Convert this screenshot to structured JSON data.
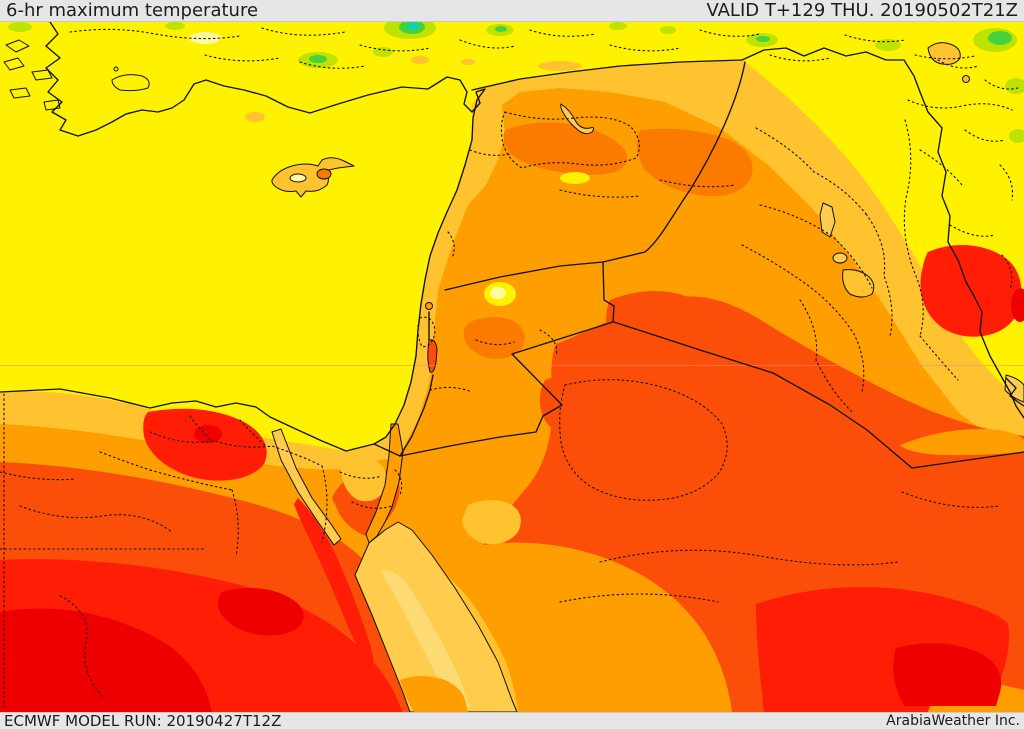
{
  "header": {
    "title": "6-hr maximum temperature",
    "valid_label": "VALID T+129 THU. 20190502T21Z"
  },
  "footer": {
    "model_run": "ECMWF MODEL RUN: 20190427T12Z",
    "credit": "ArabiaWeather Inc."
  },
  "ui": {
    "bar_bg": "#E6E6E6",
    "bar_text": "#1C1C1C",
    "line_color": "#111111"
  },
  "map": {
    "description": "ECMWF 6-hour maximum temperature filled-contour forecast map of the Middle East and Eastern Mediterranean",
    "palette": {
      "teal": "#12D2A8",
      "green": "#46D23C",
      "lime": "#BFE300",
      "yellow": "#FFF200",
      "pale": "#FFF9A0",
      "amber": "#FFC330",
      "sand": "#FFCC4D",
      "cream": "#FFDC73",
      "orange": "#FF9E00",
      "dorange": "#FB7A00",
      "rorange": "#FB4E09",
      "red": "#FF1E05",
      "dred": "#EE0000",
      "ink": "#111111"
    },
    "features": [
      "Mediterranean Sea",
      "Turkey",
      "Aegean islands",
      "Cyprus",
      "Levant coast",
      "Sea of Galilee",
      "Dead Sea",
      "Lake Assad",
      "Lake Van",
      "Lake Tharthar",
      "Lake Habbaniyah",
      "Lake Razzaza",
      "Nile Delta",
      "Sinai Peninsula",
      "Gulf of Suez",
      "Gulf of Aqaba",
      "Red Sea",
      "Persian Gulf",
      "Turkey-Syria border",
      "Syria-Iraq border",
      "Jordan-Saudi border",
      "Iraq-Saudi border",
      "Iran-Iraq border",
      "Egypt-Israel border"
    ]
  }
}
